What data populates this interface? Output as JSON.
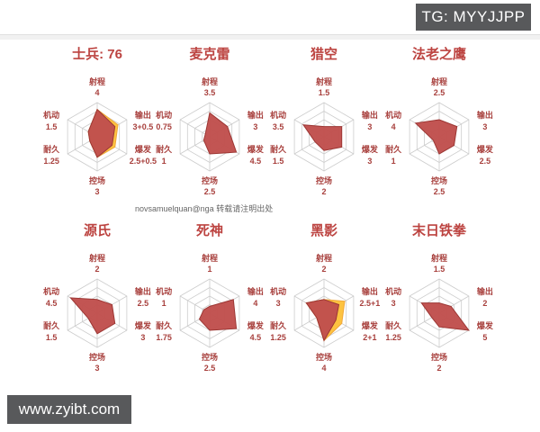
{
  "page": {
    "badge_tg": "TG: MYYJJPP",
    "attribution": "novsamuelquan@nga 转载请注明出处",
    "watermark": "www.zyibt.com"
  },
  "colors": {
    "title_red": "#bc4340",
    "label_red": "#a8403d",
    "polygon_fill": "#c0504d",
    "polygon_stroke": "#9c3734",
    "bonus_fill": "#fdc340",
    "bonus_stroke": "#f0a73a",
    "grid": "#cccccc",
    "badge_bg": "#58595b",
    "badge_text": "#ffffff",
    "attribution_gray": "#666666"
  },
  "chart_data": [
    {
      "type": "radar",
      "title": "士兵: 76",
      "max": 5,
      "axis_order": "clockwise-from-top",
      "axes": [
        "射程",
        "输出",
        "爆发",
        "控场",
        "耐久",
        "机动"
      ],
      "values": [
        4,
        3,
        2.5,
        3,
        1.25,
        1.5
      ],
      "value_labels": [
        "4",
        "3+0.5",
        "2.5+0.5",
        "3",
        "1.25",
        "1.5"
      ],
      "bonus_values": [
        4,
        3.5,
        3,
        3,
        1.25,
        1.5
      ]
    },
    {
      "type": "radar",
      "title": "麦克雷",
      "max": 5,
      "axis_order": "clockwise-from-top",
      "axes": [
        "射程",
        "输出",
        "爆发",
        "控场",
        "耐久",
        "机动"
      ],
      "values": [
        3.5,
        3,
        4.5,
        2.5,
        1,
        0.75
      ],
      "value_labels": [
        "3.5",
        "3",
        "4.5",
        "2.5",
        "1",
        "0.75"
      ],
      "bonus_values": null
    },
    {
      "type": "radar",
      "title": "猎空",
      "max": 5,
      "axis_order": "clockwise-from-top",
      "axes": [
        "射程",
        "输出",
        "爆发",
        "控场",
        "耐久",
        "机动"
      ],
      "values": [
        1.5,
        3,
        3,
        2,
        1.5,
        3.5
      ],
      "value_labels": [
        "1.5",
        "3",
        "3",
        "2",
        "1.5",
        "3.5"
      ],
      "bonus_values": null
    },
    {
      "type": "radar",
      "title": "法老之鹰",
      "max": 5,
      "axis_order": "clockwise-from-top",
      "axes": [
        "射程",
        "输出",
        "爆发",
        "控场",
        "耐久",
        "机动"
      ],
      "values": [
        2.5,
        3,
        2.5,
        2.5,
        1,
        4
      ],
      "value_labels": [
        "2.5",
        "3",
        "2.5",
        "2.5",
        "1",
        "4"
      ],
      "bonus_values": null
    },
    {
      "type": "radar",
      "title": "源氏",
      "max": 5,
      "axis_order": "clockwise-from-top",
      "axes": [
        "射程",
        "输出",
        "爆发",
        "控场",
        "耐久",
        "机动"
      ],
      "values": [
        2,
        2.5,
        3,
        3,
        1.5,
        4.5
      ],
      "value_labels": [
        "2",
        "2.5",
        "3",
        "3",
        "1.5",
        "4.5"
      ],
      "bonus_values": null
    },
    {
      "type": "radar",
      "title": "死神",
      "max": 5,
      "axis_order": "clockwise-from-top",
      "axes": [
        "射程",
        "输出",
        "爆发",
        "控场",
        "耐久",
        "机动"
      ],
      "values": [
        1,
        4,
        4.5,
        2.5,
        1.75,
        1
      ],
      "value_labels": [
        "1",
        "4",
        "4.5",
        "2.5",
        "1.75",
        "1"
      ],
      "bonus_values": null
    },
    {
      "type": "radar",
      "title": "黑影",
      "max": 5,
      "axis_order": "clockwise-from-top",
      "axes": [
        "射程",
        "输出",
        "爆发",
        "控场",
        "耐久",
        "机动"
      ],
      "values": [
        2,
        2.5,
        2,
        4,
        1.25,
        3
      ],
      "value_labels": [
        "2",
        "2.5+1",
        "2+1",
        "4",
        "1.25",
        "3"
      ],
      "bonus_values": [
        2,
        3.5,
        3,
        4,
        1.25,
        3
      ]
    },
    {
      "type": "radar",
      "title": "末日铁拳",
      "max": 5,
      "axis_order": "clockwise-from-top",
      "axes": [
        "射程",
        "输出",
        "爆发",
        "控场",
        "耐久",
        "机动"
      ],
      "values": [
        1.5,
        2,
        5,
        2,
        1.25,
        3
      ],
      "value_labels": [
        "1.5",
        "2",
        "5",
        "2",
        "1.25",
        "3"
      ],
      "bonus_values": null
    }
  ]
}
